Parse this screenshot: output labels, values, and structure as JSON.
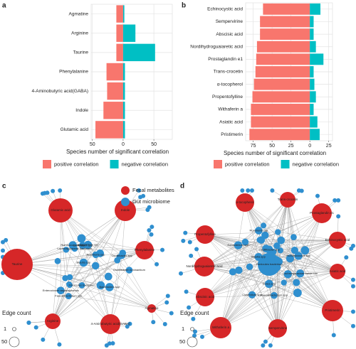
{
  "chart_data": [
    {
      "type": "bar",
      "label": "a",
      "x_label": "Species number of significant correlation",
      "categories": [
        "Agmatine",
        "Arginine",
        "Taurine",
        "Phenylalanine",
        "4-Aminobutyric acid(GABA)",
        "Indole",
        "Glutamic acid"
      ],
      "series": [
        {
          "name": "positive correlation",
          "color": "#f8766d",
          "values": [
            -11,
            -11,
            -11,
            -27,
            -26,
            -32,
            -45
          ]
        },
        {
          "name": "negative correlation",
          "color": "#00bfc4",
          "values": [
            2,
            20,
            52,
            3,
            3,
            3,
            3
          ]
        }
      ],
      "xlim": [
        -52,
        80
      ],
      "xticks": [
        {
          "value": -50,
          "label": "50"
        },
        0,
        50
      ],
      "grid": true,
      "legend": "bottom"
    },
    {
      "type": "bar",
      "label": "b",
      "x_label": "Species number of significant correlation",
      "categories": [
        "Echinocystic acid",
        "Sempervirine",
        "Abscisic acid",
        "Nordihydroguaiaretic acid",
        "Prostaglandin e1",
        "Trans-crocetin",
        "α-tocopherol",
        "Propentofylline",
        "Withaferin a",
        "Asiatic acid",
        "Pristimerin"
      ],
      "series": [
        {
          "name": "positive correlation",
          "color": "#f8766d",
          "values": [
            -62,
            -66,
            -66,
            -70,
            -71,
            -72,
            -74,
            -76,
            -78,
            -78,
            -80
          ]
        },
        {
          "name": "negative correlation",
          "color": "#00bfc4",
          "values": [
            14,
            5,
            5,
            8,
            18,
            5,
            6,
            8,
            5,
            10,
            13
          ]
        }
      ],
      "xlim": [
        -85,
        30
      ],
      "xticks": [
        {
          "value": -75,
          "label": "75"
        },
        {
          "value": -50,
          "label": "50"
        },
        {
          "value": -25,
          "label": "25"
        },
        0,
        25
      ],
      "grid": true,
      "legend": "bottom"
    }
  ],
  "networks": [
    {
      "label": "c",
      "metabolites": [
        "Glutamic acid",
        "Indole",
        "Taurine",
        "Phenylalanine",
        "Arginine",
        "4-Aminobutyric acid(GABA)",
        "Agmatine"
      ],
      "microbes": [
        "Oscillibacter ruminantium",
        "Firmicutes bacterium",
        "Clostridium spp",
        "Faecalibacterium spp",
        "Eubacterium spp",
        "Ruminococcus spp",
        "Roseburia spp",
        "Enterocloster asparagiformis",
        "Blautia spp",
        "Lachnospiraceae bacterium",
        "Oscillibacter spp",
        "Bacteroides spp"
      ]
    },
    {
      "label": "d",
      "metabolites": [
        "α-tocopherol",
        "Trans-crocetin",
        "Prostaglandin e1",
        "Propentofylline",
        "Echinocystic acid",
        "Nordihydroguaiaretic acid",
        "Asiatic acid",
        "Abscisic acid",
        "Pristimerin",
        "Withaferin a",
        "Sempervirine"
      ],
      "microbes": [
        "Firmicutes bacterium",
        "Oscillibacter spp",
        "Clostridium spp",
        "Ruminococcus spp",
        "Eubacterium spp",
        "Roseburia spp",
        "Blautia spp",
        "Lachnospiraceae bacterium",
        "Faecalibacterium spp",
        "Dorea spp"
      ]
    }
  ],
  "network_legend": {
    "node_types": [
      "Fecal metabolites",
      "Gut microbiome"
    ],
    "edge_title": "Edge count",
    "edge_sizes": [
      "1",
      "50"
    ]
  }
}
